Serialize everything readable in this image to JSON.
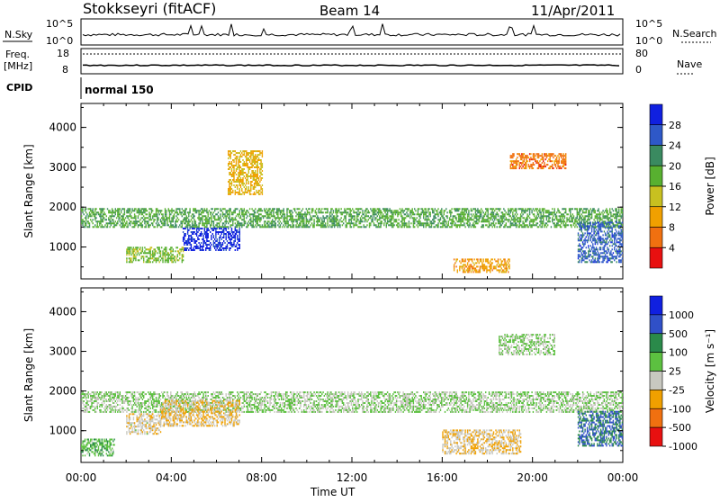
{
  "header": {
    "station": "Stokkseyri (fitACF)",
    "beam": "Beam 14",
    "date": "11/Apr/2011"
  },
  "noise_panel": {
    "left_label": "N.Sky",
    "right_label": "N.Search",
    "ticks_left": [
      "10^5",
      "10^0"
    ],
    "ticks_right": [
      "10^5",
      "10^0"
    ]
  },
  "freq_panel": {
    "left_label_1": "Freq.",
    "left_label_2": "[MHz]",
    "right_label": "Nave",
    "ticks_left": [
      "18",
      "8"
    ],
    "ticks_right": [
      "80",
      "0"
    ]
  },
  "cpid": {
    "label": "CPID",
    "value": "normal 150"
  },
  "x_axis": {
    "label": "Time UT",
    "ticks": [
      "00:00",
      "04:00",
      "08:00",
      "12:00",
      "16:00",
      "20:00",
      "00:00"
    ]
  },
  "chart_data": [
    {
      "type": "heatmap",
      "parameter": "Power",
      "ylabel": "Slant Range [km]",
      "yticks": [
        1000,
        2000,
        3000,
        4000
      ],
      "ylim": [
        200,
        4600
      ],
      "xlim_hours": [
        0,
        24
      ],
      "colorbar": {
        "label": "Power [dB]",
        "ticks": [
          "4",
          "8",
          "12",
          "16",
          "20",
          "24",
          "28"
        ],
        "range": [
          0,
          30
        ]
      },
      "colors": [
        "#1020e0",
        "#2e58c8",
        "#3a8a60",
        "#58b030",
        "#c8c020",
        "#f0a000",
        "#f07010",
        "#e81010"
      ],
      "bands": [
        {
          "t0": 0.0,
          "t1": 24.0,
          "r0": 1480,
          "r1": 1950,
          "v": 18
        },
        {
          "t0": 4.5,
          "t1": 7.0,
          "r0": 900,
          "r1": 1450,
          "v": 27
        },
        {
          "t0": 2.0,
          "t1": 4.5,
          "r0": 600,
          "r1": 1000,
          "v": 16
        },
        {
          "t0": 6.5,
          "t1": 8.0,
          "r0": 2300,
          "r1": 3400,
          "v": 11
        },
        {
          "t0": 16.5,
          "t1": 19.0,
          "r0": 350,
          "r1": 700,
          "v": 9
        },
        {
          "t0": 19.0,
          "t1": 21.5,
          "r0": 2950,
          "r1": 3350,
          "v": 6
        },
        {
          "t0": 22.0,
          "t1": 24.0,
          "r0": 600,
          "r1": 1600,
          "v": 24
        }
      ]
    },
    {
      "type": "heatmap",
      "parameter": "Velocity",
      "ylabel": "Slant Range [km]",
      "yticks": [
        1000,
        2000,
        3000,
        4000
      ],
      "ylim": [
        200,
        4600
      ],
      "xlim_hours": [
        0,
        24
      ],
      "colorbar": {
        "label": "Velocity [m s⁻¹]",
        "ticks": [
          "1000",
          "500",
          "100",
          "25",
          "-25",
          "-100",
          "-500",
          "-1000"
        ],
        "range": [
          -1200,
          1200
        ]
      },
      "colors": [
        "#1020e0",
        "#3050c8",
        "#2a8a4a",
        "#5cc040",
        "#c8c8c0",
        "#f0a000",
        "#f07010",
        "#e81010"
      ],
      "bands": [
        {
          "t0": 0.0,
          "t1": 24.0,
          "r0": 1450,
          "r1": 1950,
          "v": 0
        },
        {
          "t0": 3.5,
          "t1": 7.0,
          "r0": 1100,
          "r1": 1750,
          "v": -300
        },
        {
          "t0": 2.0,
          "t1": 3.5,
          "r0": 900,
          "r1": 1400,
          "v": -200
        },
        {
          "t0": 16.0,
          "t1": 19.5,
          "r0": 400,
          "r1": 1000,
          "v": -300
        },
        {
          "t0": 18.5,
          "t1": 21.0,
          "r0": 2900,
          "r1": 3400,
          "v": 0
        },
        {
          "t0": 22.0,
          "t1": 24.0,
          "r0": 600,
          "r1": 1500,
          "v": 600
        },
        {
          "t0": 0.0,
          "t1": 1.5,
          "r0": 350,
          "r1": 800,
          "v": 200
        }
      ]
    }
  ]
}
